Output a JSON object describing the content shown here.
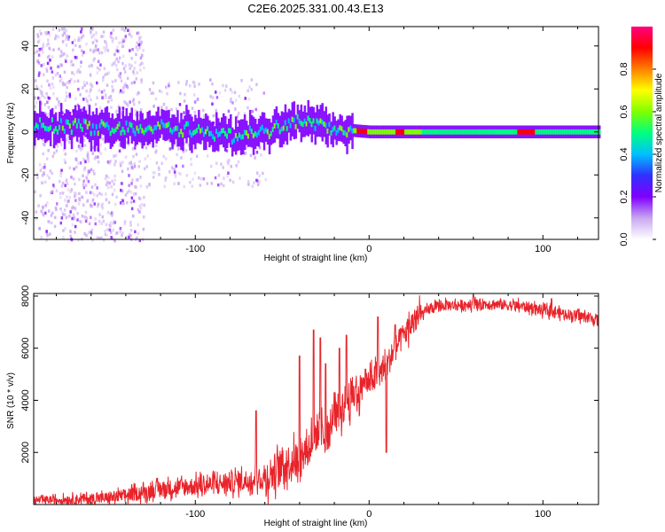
{
  "title": "C2E6.2025.331.00.43.E13",
  "chart_data": [
    {
      "type": "heatmap",
      "name": "spectrogram",
      "xlabel": "Height of straight line (km)",
      "ylabel": "Frequency (Hz)",
      "xlim": [
        -193,
        132
      ],
      "ylim": [
        -50,
        49
      ],
      "x_ticks": [
        -100,
        0,
        100
      ],
      "x_tick_labels": [
        "-100",
        "0",
        "100"
      ],
      "y_ticks": [
        -40,
        -20,
        0,
        20,
        40
      ],
      "y_tick_labels": [
        "-40",
        "-20",
        "0",
        "20",
        "40"
      ],
      "colorbar": {
        "label": "Normalized spectral amplitude",
        "range": [
          0,
          1
        ],
        "ticks": [
          0,
          0.2,
          0.4,
          0.6,
          0.8
        ],
        "tick_labels": [
          "0.0",
          "0.2",
          "0.4",
          "0.6",
          "0.8"
        ],
        "colormap": [
          "#ffffff",
          "#c8a8f0",
          "#8000ff",
          "#3030ff",
          "#00c0ff",
          "#00ff80",
          "#80ff00",
          "#ffff00",
          "#ff8000",
          "#ff0000",
          "#ff0080"
        ]
      },
      "signal_band_center_hz": [
        [
          -193,
          3
        ],
        [
          -150,
          2
        ],
        [
          -120,
          2
        ],
        [
          -100,
          1
        ],
        [
          -80,
          -2
        ],
        [
          -60,
          0
        ],
        [
          -45,
          5
        ],
        [
          -30,
          3
        ],
        [
          -15,
          1
        ],
        [
          0,
          0
        ],
        [
          30,
          0
        ],
        [
          100,
          0
        ],
        [
          132,
          0
        ]
      ],
      "noise_clouds": [
        {
          "x_range": [
            -193,
            -130
          ],
          "f_range": [
            -50,
            49
          ],
          "level": 0.1
        },
        {
          "x_range": [
            -130,
            -60
          ],
          "f_range": [
            -25,
            25
          ],
          "level": 0.05
        }
      ]
    },
    {
      "type": "line",
      "name": "snr",
      "xlabel": "Height of straight line (km)",
      "ylabel": "SNR (10 * v/v)",
      "xlim": [
        -193,
        132
      ],
      "ylim": [
        0,
        8100
      ],
      "x_ticks": [
        -100,
        0,
        100
      ],
      "x_tick_labels": [
        "-100",
        "0",
        "100"
      ],
      "y_ticks": [
        2000,
        4000,
        6000,
        8000
      ],
      "y_tick_labels": [
        "2000",
        "4000",
        "6000",
        "8000"
      ],
      "series": [
        {
          "name": "SNR",
          "color": "#e8232a",
          "envelope_x": [
            -193,
            -170,
            -150,
            -135,
            -120,
            -100,
            -80,
            -60,
            -50,
            -40,
            -35,
            -30,
            -25,
            -20,
            -15,
            -10,
            -5,
            0,
            5,
            10,
            15,
            20,
            25,
            30,
            35,
            40,
            45,
            50,
            60,
            70,
            80,
            90,
            100,
            110,
            120,
            132
          ],
          "envelope_y": [
            150,
            200,
            250,
            400,
            600,
            700,
            850,
            1000,
            1500,
            1800,
            2200,
            2800,
            2600,
            3200,
            3800,
            4200,
            4400,
            4700,
            5000,
            5300,
            6000,
            6500,
            7000,
            7300,
            7500,
            7600,
            7650,
            7650,
            7700,
            7700,
            7650,
            7600,
            7450,
            7350,
            7250,
            7100
          ],
          "spikes": [
            [
              -65,
              3600
            ],
            [
              -40,
              5700
            ],
            [
              -32,
              6700
            ],
            [
              -28,
              6400
            ],
            [
              -25,
              5400
            ],
            [
              -20,
              4300
            ],
            [
              -17,
              6000
            ],
            [
              -13,
              6500
            ],
            [
              -8,
              4500
            ],
            [
              -2,
              5200
            ],
            [
              5,
              7200
            ],
            [
              10,
              2000
            ],
            [
              15,
              6900
            ],
            [
              60,
              8000
            ],
            [
              105,
              7900
            ]
          ]
        }
      ]
    }
  ]
}
